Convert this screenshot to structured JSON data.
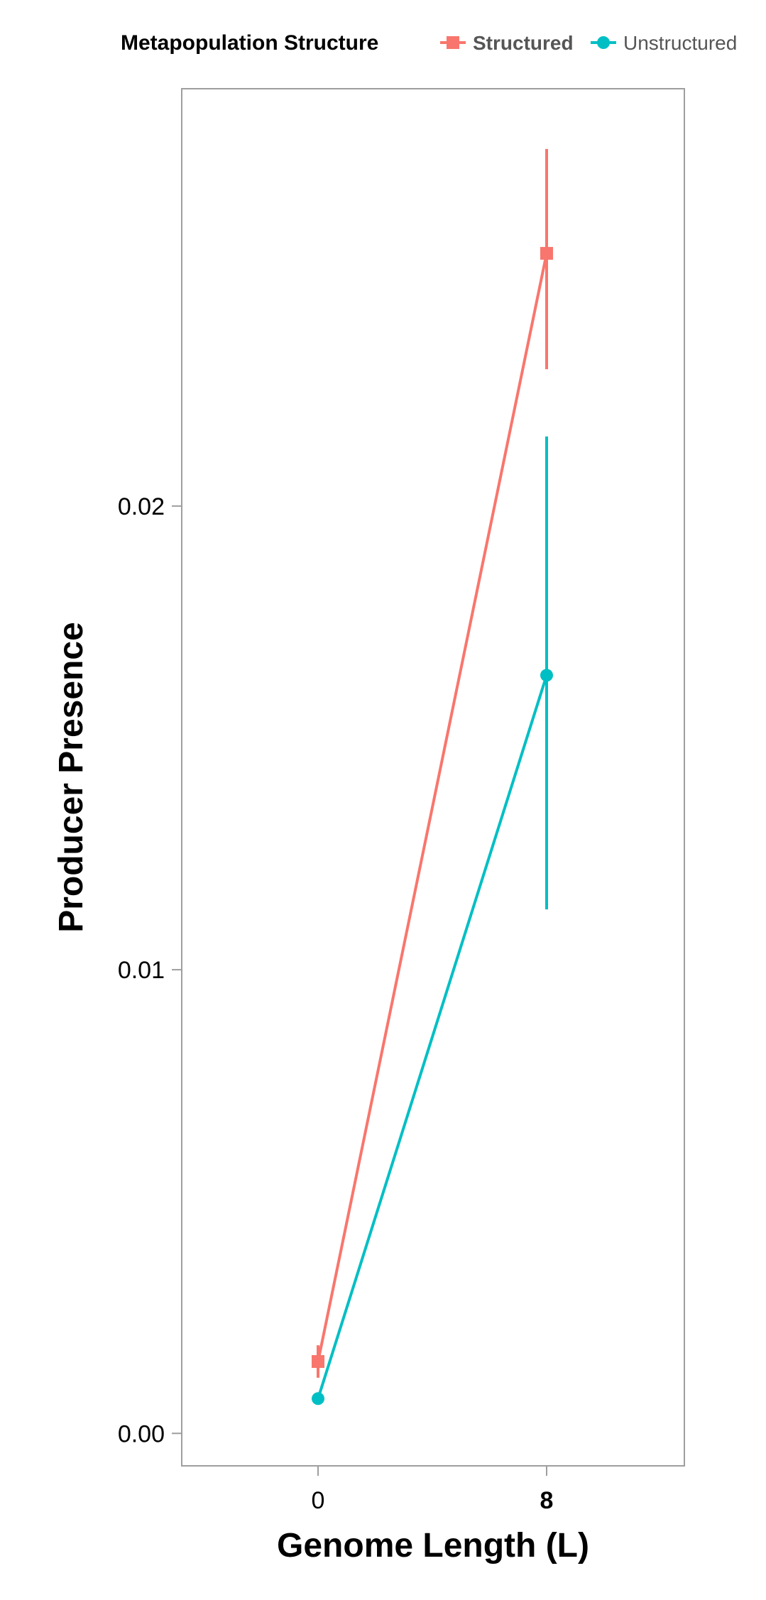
{
  "chart_data": {
    "type": "line",
    "title": "",
    "xlabel": "Genome Length (L)",
    "ylabel": "Producer Presence",
    "categories": [
      "0",
      "8"
    ],
    "ylim": [
      -0.0007,
      0.029
    ],
    "yticks": [
      0.0,
      0.01,
      0.02
    ],
    "ytick_labels": [
      "0.00",
      "0.01",
      "0.02"
    ],
    "grid": false,
    "legend": {
      "title": "Metapopulation Structure",
      "placement": "top"
    },
    "series": [
      {
        "name": "Structured",
        "color": "#F8766D",
        "marker": "square",
        "values": [
          0.00155,
          0.02545
        ],
        "error_low": [
          0.0012,
          0.02295
        ],
        "error_high": [
          0.0019,
          0.0277
        ]
      },
      {
        "name": "Unstructured",
        "color": "#00BFC4",
        "marker": "circle",
        "values": [
          0.00075,
          0.01635
        ],
        "error_low": [
          0.00075,
          0.0113
        ],
        "error_high": [
          0.00075,
          0.0215
        ]
      }
    ]
  }
}
